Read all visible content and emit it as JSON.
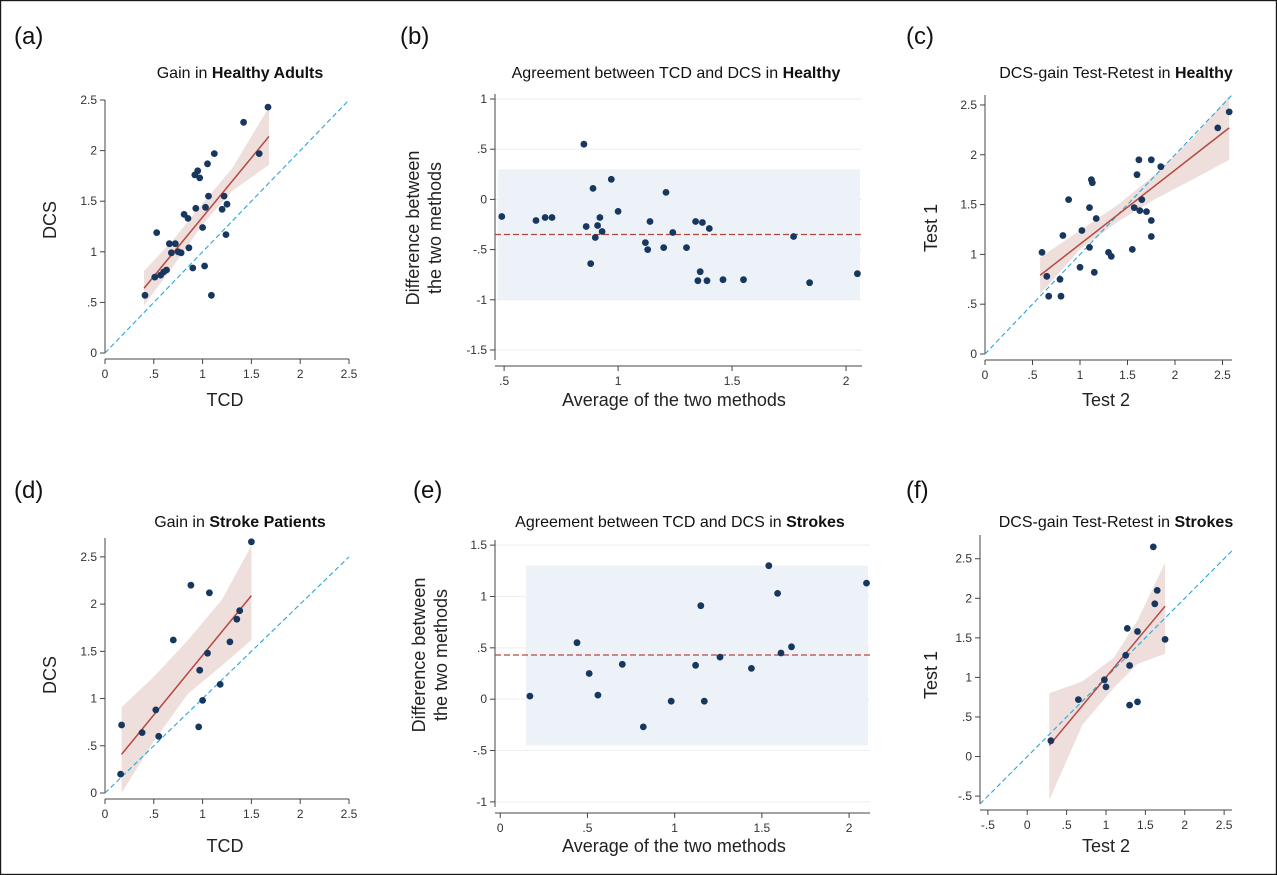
{
  "figure": {
    "panels": [
      {
        "letter": "(a)",
        "title_plain": "Gain in ",
        "title_bold": "Healthy Adults",
        "chart_data": {
          "type": "scatter",
          "xlabel": "TCD",
          "ylabel": "DCS",
          "xlim": [
            0,
            2.5
          ],
          "ylim": [
            0,
            2.5
          ],
          "xticks": [
            0,
            0.5,
            1,
            1.5,
            2,
            2.5
          ],
          "xtick_labels": [
            "0",
            ".5",
            "1",
            "1.5",
            "2",
            "2.5"
          ],
          "yticks": [
            0,
            0.5,
            1,
            1.5,
            2,
            2.5
          ],
          "ytick_labels": [
            "0",
            ".5",
            "1",
            "1.5",
            "2",
            "2.5"
          ],
          "identity_line": true,
          "fit": {
            "x": [
              0.4,
              1.68
            ],
            "y": [
              0.64,
              2.14
            ]
          },
          "ci_band": {
            "x": [
              0.4,
              0.7,
              1.0,
              1.3,
              1.68
            ],
            "lower": [
              0.47,
              0.86,
              1.27,
              1.6,
              1.86
            ],
            "upper": [
              0.81,
              1.12,
              1.48,
              1.82,
              2.43
            ]
          },
          "points": [
            [
              0.41,
              0.57
            ],
            [
              0.51,
              0.75
            ],
            [
              0.53,
              1.19
            ],
            [
              0.57,
              0.77
            ],
            [
              0.6,
              0.8
            ],
            [
              0.63,
              0.82
            ],
            [
              0.66,
              1.08
            ],
            [
              0.68,
              0.99
            ],
            [
              0.72,
              1.08
            ],
            [
              0.75,
              1.0
            ],
            [
              0.78,
              0.99
            ],
            [
              0.81,
              1.37
            ],
            [
              0.85,
              1.33
            ],
            [
              0.86,
              1.04
            ],
            [
              0.9,
              0.84
            ],
            [
              0.92,
              1.76
            ],
            [
              0.93,
              1.43
            ],
            [
              0.95,
              1.8
            ],
            [
              0.97,
              1.73
            ],
            [
              1.0,
              1.24
            ],
            [
              1.02,
              0.86
            ],
            [
              1.03,
              1.44
            ],
            [
              1.05,
              1.87
            ],
            [
              1.06,
              1.55
            ],
            [
              1.09,
              0.57
            ],
            [
              1.12,
              1.97
            ],
            [
              1.2,
              1.42
            ],
            [
              1.22,
              1.55
            ],
            [
              1.24,
              1.17
            ],
            [
              1.25,
              1.47
            ],
            [
              1.42,
              2.28
            ],
            [
              1.58,
              1.97
            ],
            [
              1.67,
              2.43
            ]
          ]
        }
      },
      {
        "letter": "(b)",
        "title_plain": "Agreement between TCD and DCS in ",
        "title_bold": "Healthy",
        "chart_data": {
          "type": "scatter",
          "xlabel": "Average of the two methods",
          "ylabel_line1": "Difference between",
          "ylabel_line2": "the two methods",
          "xlim": [
            0.46,
            2.07
          ],
          "ylim": [
            -1.6,
            1.05
          ],
          "xticks": [
            0.5,
            1,
            1.5,
            2
          ],
          "xtick_labels": [
            ".5",
            "1",
            "1.5",
            "2"
          ],
          "yticks": [
            -1.5,
            -1,
            -0.5,
            0,
            0.5,
            1
          ],
          "ytick_labels": [
            "-1.5",
            "-1",
            "-.5",
            "0",
            ".5",
            "1"
          ],
          "mean_difference": -0.35,
          "limits_of_agreement": [
            -1.0,
            0.3
          ],
          "points": [
            [
              0.49,
              -0.17
            ],
            [
              0.64,
              -0.21
            ],
            [
              0.68,
              -0.18
            ],
            [
              0.71,
              -0.18
            ],
            [
              0.85,
              0.55
            ],
            [
              0.86,
              -0.27
            ],
            [
              0.88,
              -0.64
            ],
            [
              0.89,
              0.11
            ],
            [
              0.9,
              -0.38
            ],
            [
              0.91,
              -0.26
            ],
            [
              0.92,
              -0.18
            ],
            [
              0.93,
              -0.32
            ],
            [
              0.97,
              0.2
            ],
            [
              1.0,
              -0.12
            ],
            [
              1.12,
              -0.43
            ],
            [
              1.13,
              -0.5
            ],
            [
              1.14,
              -0.22
            ],
            [
              1.2,
              -0.48
            ],
            [
              1.21,
              0.07
            ],
            [
              1.24,
              -0.33
            ],
            [
              1.3,
              -0.48
            ],
            [
              1.34,
              -0.22
            ],
            [
              1.35,
              -0.81
            ],
            [
              1.36,
              -0.72
            ],
            [
              1.37,
              -0.23
            ],
            [
              1.39,
              -0.81
            ],
            [
              1.4,
              -0.29
            ],
            [
              1.46,
              -0.8
            ],
            [
              1.55,
              -0.8
            ],
            [
              1.77,
              -0.37
            ],
            [
              1.84,
              -0.83
            ],
            [
              2.05,
              -0.74
            ]
          ]
        }
      },
      {
        "letter": "(c)",
        "title_plain": "DCS-gain Test-Retest in ",
        "title_bold": "Healthy",
        "chart_data": {
          "type": "scatter",
          "xlabel": "Test 2",
          "ylabel": "Test 1",
          "xlim": [
            0,
            2.6
          ],
          "ylim": [
            0,
            2.6
          ],
          "xticks": [
            0,
            0.5,
            1,
            1.5,
            2,
            2.5
          ],
          "xtick_labels": [
            "0",
            ".5",
            "1",
            "1.5",
            "2",
            "2.5"
          ],
          "yticks": [
            0,
            0.5,
            1,
            1.5,
            2,
            2.5
          ],
          "ytick_labels": [
            "0",
            ".5",
            "1",
            "1.5",
            "2",
            "2.5"
          ],
          "identity_line": true,
          "fit": {
            "x": [
              0.58,
              2.57
            ],
            "y": [
              0.79,
              2.27
            ]
          },
          "ci_band": {
            "x": [
              0.58,
              1.0,
              1.4,
              1.8,
              2.2,
              2.57
            ],
            "lower": [
              0.6,
              1.05,
              1.33,
              1.56,
              1.76,
              1.95
            ],
            "upper": [
              0.97,
              1.24,
              1.5,
              1.81,
              2.18,
              2.59
            ]
          },
          "points": [
            [
              0.6,
              1.02
            ],
            [
              0.65,
              0.78
            ],
            [
              0.67,
              0.58
            ],
            [
              0.79,
              0.75
            ],
            [
              0.8,
              0.58
            ],
            [
              0.82,
              1.19
            ],
            [
              0.88,
              1.55
            ],
            [
              1.0,
              0.87
            ],
            [
              1.02,
              1.24
            ],
            [
              1.1,
              1.07
            ],
            [
              1.1,
              1.47
            ],
            [
              1.12,
              1.75
            ],
            [
              1.13,
              1.72
            ],
            [
              1.15,
              0.82
            ],
            [
              1.17,
              1.36
            ],
            [
              1.3,
              1.02
            ],
            [
              1.33,
              0.98
            ],
            [
              1.55,
              1.05
            ],
            [
              1.57,
              1.47
            ],
            [
              1.6,
              1.8
            ],
            [
              1.62,
              1.95
            ],
            [
              1.63,
              1.44
            ],
            [
              1.65,
              1.55
            ],
            [
              1.7,
              1.43
            ],
            [
              1.75,
              1.34
            ],
            [
              1.75,
              1.18
            ],
            [
              1.75,
              1.95
            ],
            [
              1.85,
              1.88
            ],
            [
              2.45,
              2.27
            ],
            [
              2.57,
              2.43
            ]
          ]
        }
      },
      {
        "letter": "(d)",
        "title_plain": "Gain in ",
        "title_bold": "Stroke Patients",
        "chart_data": {
          "type": "scatter",
          "xlabel": "TCD",
          "ylabel": "DCS",
          "xlim": [
            0,
            2.5
          ],
          "ylim": [
            0,
            2.7
          ],
          "xticks": [
            0,
            0.5,
            1,
            1.5,
            2,
            2.5
          ],
          "xtick_labels": [
            "0",
            ".5",
            "1",
            "1.5",
            "2",
            "2.5"
          ],
          "yticks": [
            0,
            0.5,
            1,
            1.5,
            2,
            2.5
          ],
          "ytick_labels": [
            "0",
            ".5",
            "1",
            "1.5",
            "2",
            "2.5"
          ],
          "identity_line": true,
          "fit": {
            "x": [
              0.17,
              1.5
            ],
            "y": [
              0.41,
              2.09
            ]
          },
          "ci_band": {
            "x": [
              0.17,
              0.5,
              0.85,
              1.2,
              1.5
            ],
            "lower": [
              -0.06,
              0.55,
              1.05,
              1.35,
              1.62
            ],
            "upper": [
              0.91,
              1.23,
              1.62,
              2.05,
              2.62
            ]
          },
          "points": [
            [
              0.16,
              0.2
            ],
            [
              0.17,
              0.72
            ],
            [
              0.38,
              0.64
            ],
            [
              0.52,
              0.88
            ],
            [
              0.55,
              0.6
            ],
            [
              0.7,
              1.62
            ],
            [
              0.88,
              2.2
            ],
            [
              0.96,
              0.7
            ],
            [
              0.97,
              1.3
            ],
            [
              1.0,
              0.98
            ],
            [
              1.05,
              1.48
            ],
            [
              1.07,
              2.12
            ],
            [
              1.18,
              1.15
            ],
            [
              1.28,
              1.6
            ],
            [
              1.35,
              1.84
            ],
            [
              1.38,
              1.93
            ],
            [
              1.5,
              2.66
            ]
          ]
        }
      },
      {
        "letter": "(e)",
        "title_plain": "Agreement between TCD and DCS in ",
        "title_bold": "Strokes",
        "chart_data": {
          "type": "scatter",
          "xlabel": "Average of the two methods",
          "ylabel_line1": "Difference between",
          "ylabel_line2": "the two methods",
          "xlim": [
            -0.03,
            2.12
          ],
          "ylim": [
            -1.05,
            1.55
          ],
          "xticks": [
            0,
            0.5,
            1,
            1.5,
            2
          ],
          "xtick_labels": [
            "0",
            ".5",
            "1",
            "1.5",
            "2"
          ],
          "yticks": [
            -1,
            -0.5,
            0,
            0.5,
            1,
            1.5
          ],
          "ytick_labels": [
            "-1",
            "-.5",
            "0",
            ".5",
            "1",
            "1.5"
          ],
          "mean_difference": 0.43,
          "limits_of_agreement": [
            -0.45,
            1.3
          ],
          "points": [
            [
              0.17,
              0.03
            ],
            [
              0.44,
              0.55
            ],
            [
              0.51,
              0.25
            ],
            [
              0.56,
              0.04
            ],
            [
              0.7,
              0.34
            ],
            [
              0.82,
              -0.27
            ],
            [
              0.98,
              -0.02
            ],
            [
              1.12,
              0.33
            ],
            [
              1.15,
              0.91
            ],
            [
              1.17,
              -0.02
            ],
            [
              1.26,
              0.41
            ],
            [
              1.44,
              0.3
            ],
            [
              1.54,
              1.3
            ],
            [
              1.59,
              1.03
            ],
            [
              1.61,
              0.45
            ],
            [
              1.67,
              0.51
            ],
            [
              2.1,
              1.13
            ]
          ]
        }
      },
      {
        "letter": "(f)",
        "title_plain": "DCS-gain Test-Retest in ",
        "title_bold": "Strokes",
        "chart_data": {
          "type": "scatter",
          "xlabel": "Test 2",
          "ylabel": "Test 1",
          "xlim": [
            -0.6,
            2.6
          ],
          "ylim": [
            -0.6,
            2.8
          ],
          "xticks": [
            -0.5,
            0,
            0.5,
            1,
            1.5,
            2,
            2.5
          ],
          "xtick_labels": [
            "-.5",
            "0",
            ".5",
            "1",
            "1.5",
            "2",
            "2.5"
          ],
          "yticks": [
            -0.5,
            0,
            0.5,
            1,
            1.5,
            2,
            2.5
          ],
          "ytick_labels": [
            "-.5",
            "0",
            ".5",
            "1",
            "1.5",
            "2",
            "2.5"
          ],
          "identity_line": true,
          "fit": {
            "x": [
              0.28,
              1.75
            ],
            "y": [
              0.14,
              1.9
            ]
          },
          "ci_band": {
            "x": [
              0.28,
              0.7,
              1.1,
              1.4,
              1.75
            ],
            "lower": [
              -0.55,
              0.4,
              0.87,
              1.17,
              1.3
            ],
            "upper": [
              0.8,
              0.95,
              1.25,
              1.72,
              2.45
            ]
          },
          "points": [
            [
              0.3,
              0.2
            ],
            [
              0.65,
              0.72
            ],
            [
              0.98,
              0.97
            ],
            [
              1.0,
              0.88
            ],
            [
              1.25,
              1.28
            ],
            [
              1.27,
              1.62
            ],
            [
              1.3,
              1.15
            ],
            [
              1.3,
              0.65
            ],
            [
              1.4,
              1.58
            ],
            [
              1.4,
              0.69
            ],
            [
              1.6,
              2.65
            ],
            [
              1.62,
              1.93
            ],
            [
              1.65,
              2.1
            ],
            [
              1.75,
              1.48
            ]
          ]
        }
      }
    ]
  }
}
